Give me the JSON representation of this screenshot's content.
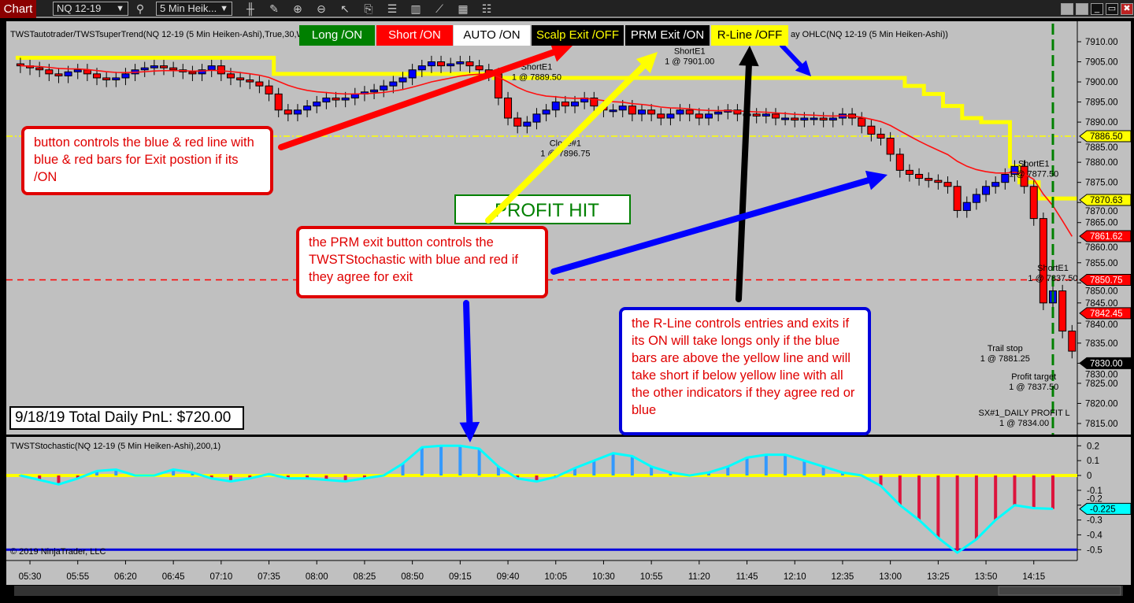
{
  "titlebar": {
    "label": "Chart",
    "instrument": "NQ 12-19",
    "interval": "5 Min Heik...",
    "icons": [
      "bar-type-icon",
      "draw-tool-icon",
      "zoom-in-icon",
      "zoom-out-icon",
      "pointer-icon",
      "data-box-icon",
      "properties-icon",
      "chart-trader-icon",
      "indicators-icon",
      "strategies-icon",
      "list-icon"
    ]
  },
  "panel": {
    "indicator_label": "TWSTautotrader/TWSTsuperTrend(NQ 12-19 (5 Min Heiken-Ashi),True,30,WM",
    "indicator_label_tail": "ay OHLC(NQ 12-19 (5 Min Heiken-Ashi))",
    "stoch_label": "TWSTStochastic(NQ 12-19 (5 Min Heiken-Ashi),200,1)",
    "copyright": "© 2019 NinjaTrader, LLC"
  },
  "buttons": [
    {
      "label": "Long /ON",
      "bg": "#008000",
      "fg": "#ffffff"
    },
    {
      "label": "Short /ON",
      "bg": "#ff0000",
      "fg": "#ffffff"
    },
    {
      "label": "AUTO /ON",
      "bg": "#ffffff",
      "fg": "#000000"
    },
    {
      "label": "Scalp Exit /OFF",
      "bg": "#000000",
      "fg": "#ffff00"
    },
    {
      "label": "PRM Exit /ON",
      "bg": "#000000",
      "fg": "#ffffff"
    },
    {
      "label": "R-Line /OFF",
      "bg": "#ffff00",
      "fg": "#000000"
    }
  ],
  "notes": {
    "n1": "button controls the blue & red line with blue & red bars for Exit postion if its /ON",
    "n2": "the PRM exit button controls the TWSTStochastic with blue and red if they agree for exit",
    "n3": "the R-Line controls entries and exits if its ON will take longs only if  the blue bars are above the yellow line and will take short if below yellow line  with all the other indicators if they agree red or blue",
    "profit_hit": "PROFIT HIT",
    "pnl": "9/18/19 Total Daily PnL: $720.00"
  },
  "chart_data": [
    {
      "type": "candlestick",
      "instrument": "NQ 12-19",
      "interval": "5 Min Heiken-Ashi",
      "start_time": "05:25",
      "closes": [
        7904,
        7903.5,
        7903,
        7902,
        7901.5,
        7902.5,
        7903,
        7902,
        7901,
        7900.5,
        7901,
        7902,
        7903,
        7903.5,
        7904,
        7903.5,
        7903,
        7902.5,
        7902,
        7903,
        7904,
        7902,
        7901,
        7900.5,
        7900,
        7899,
        7897,
        7893,
        7892,
        7893,
        7894,
        7895,
        7896,
        7895.5,
        7896,
        7897,
        7897.5,
        7898,
        7899,
        7900,
        7901,
        7903,
        7904,
        7905,
        7904,
        7904.5,
        7905,
        7904,
        7903,
        7902,
        7896,
        7891,
        7889,
        7890,
        7892,
        7893,
        7895,
        7894,
        7895,
        7896,
        7894,
        7893,
        7893,
        7894,
        7892,
        7893,
        7892,
        7891,
        7892,
        7893,
        7892,
        7891,
        7892,
        7892.5,
        7893,
        7892,
        7892,
        7891.5,
        7892,
        7891,
        7891,
        7890.5,
        7891,
        7891,
        7890.5,
        7891,
        7892,
        7891,
        7889,
        7887,
        7886,
        7882,
        7878,
        7877,
        7876,
        7875.5,
        7875,
        7874,
        7868,
        7870,
        7872,
        7874,
        7875,
        7877,
        7879,
        7874,
        7866,
        7845,
        7848,
        7838,
        7833
      ],
      "supertrend_steps": [
        [
          0,
          7906
        ],
        [
          27,
          7902
        ],
        [
          50,
          7901
        ],
        [
          93,
          7899
        ],
        [
          95,
          7897
        ],
        [
          97,
          7894
        ],
        [
          99,
          7891
        ],
        [
          101,
          7890
        ],
        [
          104,
          7879
        ],
        [
          105,
          7875
        ],
        [
          107,
          7871
        ]
      ],
      "price_axis": {
        "min": 7815,
        "max": 7910,
        "step": 5,
        "ticks": [
          "7910.00",
          "7905.00",
          "7900.00",
          "7895.00",
          "7890.00",
          "7885.00",
          "7880.00",
          "7875.00",
          "7870.00",
          "7865.00",
          "7860.00",
          "7855.00",
          "7850.00",
          "7845.00",
          "7840.00",
          "7835.00",
          "7830.00",
          "7825.00",
          "7820.00",
          "7815.00"
        ]
      },
      "hlines": [
        {
          "price": 7886.5,
          "color": "#ffff00",
          "style": "dashdot"
        },
        {
          "price": 7850.75,
          "color": "#ff0000",
          "style": "dash"
        }
      ],
      "price_markers": [
        {
          "label": "7886.50",
          "price": 7886.5,
          "bg": "#ffff00",
          "fg": "#000"
        },
        {
          "label": "7870.63",
          "price": 7870.63,
          "bg": "#ffff00",
          "fg": "#000"
        },
        {
          "label": "7861.62",
          "price": 7861.62,
          "bg": "#ff0000",
          "fg": "#fff"
        },
        {
          "label": "7850.75",
          "price": 7850.75,
          "bg": "#ff0000",
          "fg": "#fff"
        },
        {
          "label": "7842.45",
          "price": 7842.45,
          "bg": "#ff0000",
          "fg": "#fff"
        },
        {
          "label": "7830.00",
          "price": 7830,
          "bg": "#000000",
          "fg": "#fff"
        }
      ],
      "trade_labels": [
        {
          "l1": "ShortE1",
          "l2": "1 @ 7889.50",
          "bar": 54,
          "price": 7903
        },
        {
          "l1": "ShortE1",
          "l2": "1 @ 7901.00",
          "bar": 70,
          "price": 7907
        },
        {
          "l1": "Close#1",
          "l2": "1 @ 7896.75",
          "bar": 57,
          "price": 7884
        },
        {
          "l1": "ShortE1",
          "l2": "1 @ 7877.50",
          "bar": 106,
          "price": 7879
        },
        {
          "l1": "ShortE1",
          "l2": "1 @ 7837.50",
          "bar": 108,
          "price": 7853
        },
        {
          "l1": "Trail stop",
          "l2": "1 @ 7881.25",
          "bar": 103,
          "price": 7833
        },
        {
          "l1": "Profit target",
          "l2": "1 @ 7837.50",
          "bar": 106,
          "price": 7826
        },
        {
          "l1": "SX#1_DAILY PROFIT L",
          "l2": "1 @ 7834.00",
          "bar": 105,
          "price": 7817
        }
      ],
      "time_ticks": [
        "05:30",
        "05:55",
        "06:20",
        "06:45",
        "07:10",
        "07:35",
        "08:00",
        "08:25",
        "08:50",
        "09:15",
        "09:40",
        "10:05",
        "10:30",
        "10:55",
        "11:20",
        "11:45",
        "12:10",
        "12:35",
        "13:00",
        "13:25",
        "13:50",
        "14:15"
      ]
    },
    {
      "type": "bar+line",
      "name": "TWSTStochastic",
      "values": [
        0,
        -0.03,
        -0.06,
        -0.02,
        0.03,
        0.04,
        0,
        0,
        0.04,
        0.02,
        -0.02,
        -0.04,
        -0.02,
        0.01,
        -0.02,
        -0.02,
        -0.03,
        -0.04,
        -0.02,
        0,
        0.08,
        0.19,
        0.2,
        0.2,
        0.18,
        0.06,
        -0.02,
        -0.04,
        -0.01,
        0.05,
        0.1,
        0.15,
        0.13,
        0.06,
        0.02,
        0,
        0.02,
        0.06,
        0.12,
        0.14,
        0.14,
        0.1,
        0.06,
        0.02,
        0,
        -0.07,
        -0.2,
        -0.3,
        -0.42,
        -0.52,
        -0.43,
        -0.3,
        -0.2,
        -0.22,
        -0.225
      ],
      "axis_ticks": [
        "0.2",
        "0.1",
        "0",
        "-0.1",
        "-0.2",
        "-0.3",
        "-0.4",
        "-0.5"
      ],
      "hlines": [
        {
          "value": 0,
          "color": "#ffff00"
        },
        {
          "value": -0.5,
          "color": "#0000dd"
        }
      ],
      "current_marker": "-0.225",
      "marker_color": "#00ffff"
    }
  ]
}
